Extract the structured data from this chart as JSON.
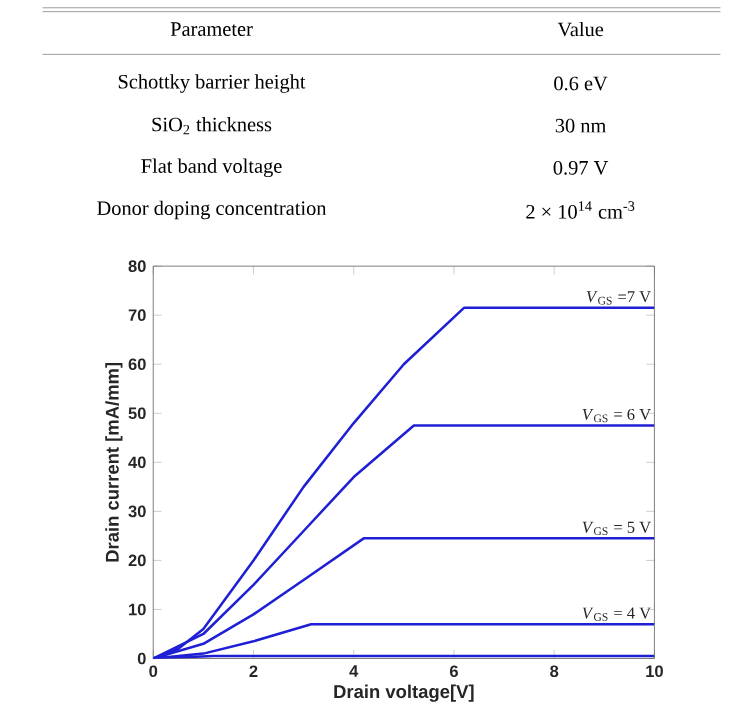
{
  "chart_data": [
    {
      "type": "other",
      "annotations": [
        "Parameter",
        "Value",
        "Schottky barrier height",
        "0.6 eV",
        "SiO$_{2}$ thickness",
        "30 nm",
        "Flat band voltage",
        "0.97 V",
        "Donor doping concentration",
        "2 × 10$^{14}$ cm$^{-3}$"
      ]
    },
    {
      "type": "line",
      "xlabel": "Drain voltage[V]",
      "ylabel": "Drain current [mA/mm]",
      "xlim": [
        0,
        10
      ],
      "ylim": [
        0,
        80
      ],
      "xticks": [
        0,
        2,
        4,
        6,
        8,
        10
      ],
      "yticks": [
        0,
        10,
        20,
        30,
        40,
        50,
        60,
        70,
        80
      ],
      "grid": false,
      "series": [
        {
          "name": "*V*$_{GS}$ =7 V",
          "color": "#1f1fd6",
          "x": [
            0,
            0.5,
            1,
            2,
            3,
            4,
            5,
            6.2,
            10
          ],
          "values": [
            0,
            2,
            6,
            20,
            35,
            48,
            60,
            71.5,
            71.5
          ]
        },
        {
          "name": "*V*$_{GS}$ = 6 V",
          "color": "#1f1fd6",
          "x": [
            0,
            1,
            2,
            3,
            4,
            5.2,
            10
          ],
          "values": [
            0,
            5,
            15,
            26,
            37,
            47.5,
            47.5
          ]
        },
        {
          "name": "*V*$_{GS}$ = 5 V",
          "color": "#1f1fd6",
          "x": [
            0,
            1,
            2,
            3,
            4.2,
            10
          ],
          "values": [
            0,
            3,
            9,
            16,
            24.5,
            24.5
          ]
        },
        {
          "name": "*V*$_{GS}$ = 4 V",
          "color": "#1f1fd6",
          "x": [
            0,
            1,
            2,
            3.15,
            10
          ],
          "values": [
            0,
            1,
            3.5,
            7,
            7
          ]
        },
        {
          "color": "#1f1fd6",
          "x": [
            0,
            1.2,
            10
          ],
          "values": [
            0,
            0.5,
            0.5
          ]
        }
      ]
    }
  ]
}
